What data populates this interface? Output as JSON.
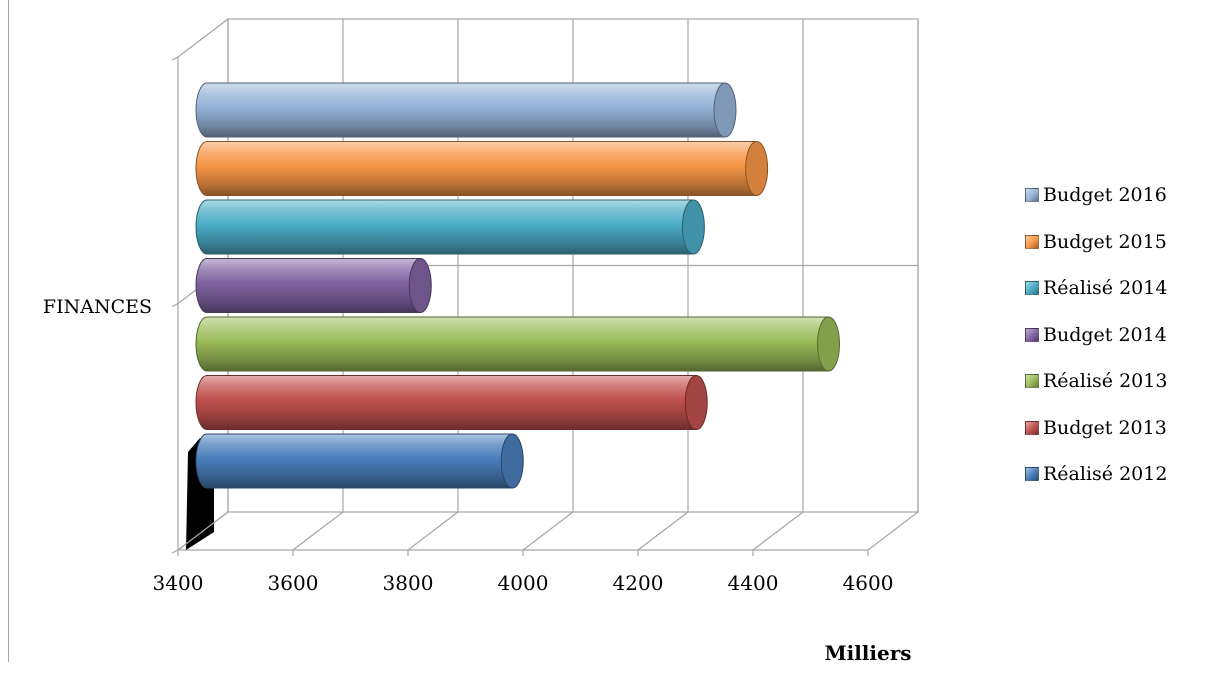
{
  "chart_data": {
    "type": "bar",
    "orientation": "horizontal",
    "style": "3d-cylinder",
    "categories": [
      "FINANCES"
    ],
    "series": [
      {
        "name": "Réalisé 2012",
        "values": [
          3950
        ],
        "color": "#4a7ebb"
      },
      {
        "name": "Budget 2013",
        "values": [
          4270
        ],
        "color": "#c0504d"
      },
      {
        "name": "Réalisé 2013",
        "values": [
          4500
        ],
        "color": "#9bbb59"
      },
      {
        "name": "Budget 2014",
        "values": [
          3790
        ],
        "color": "#8064a2"
      },
      {
        "name": "Réalisé 2014",
        "values": [
          4265
        ],
        "color": "#4bacc6"
      },
      {
        "name": "Budget 2015",
        "values": [
          4375
        ],
        "color": "#f79646"
      },
      {
        "name": "Budget 2016",
        "values": [
          4320
        ],
        "color": "#95b3d7"
      }
    ],
    "xlim": [
      3400,
      4600
    ],
    "xticks": [
      "3400",
      "3600",
      "3800",
      "4000",
      "4200",
      "4400",
      "4600"
    ],
    "xunit": "Milliers",
    "grid": true,
    "legend": "right"
  }
}
